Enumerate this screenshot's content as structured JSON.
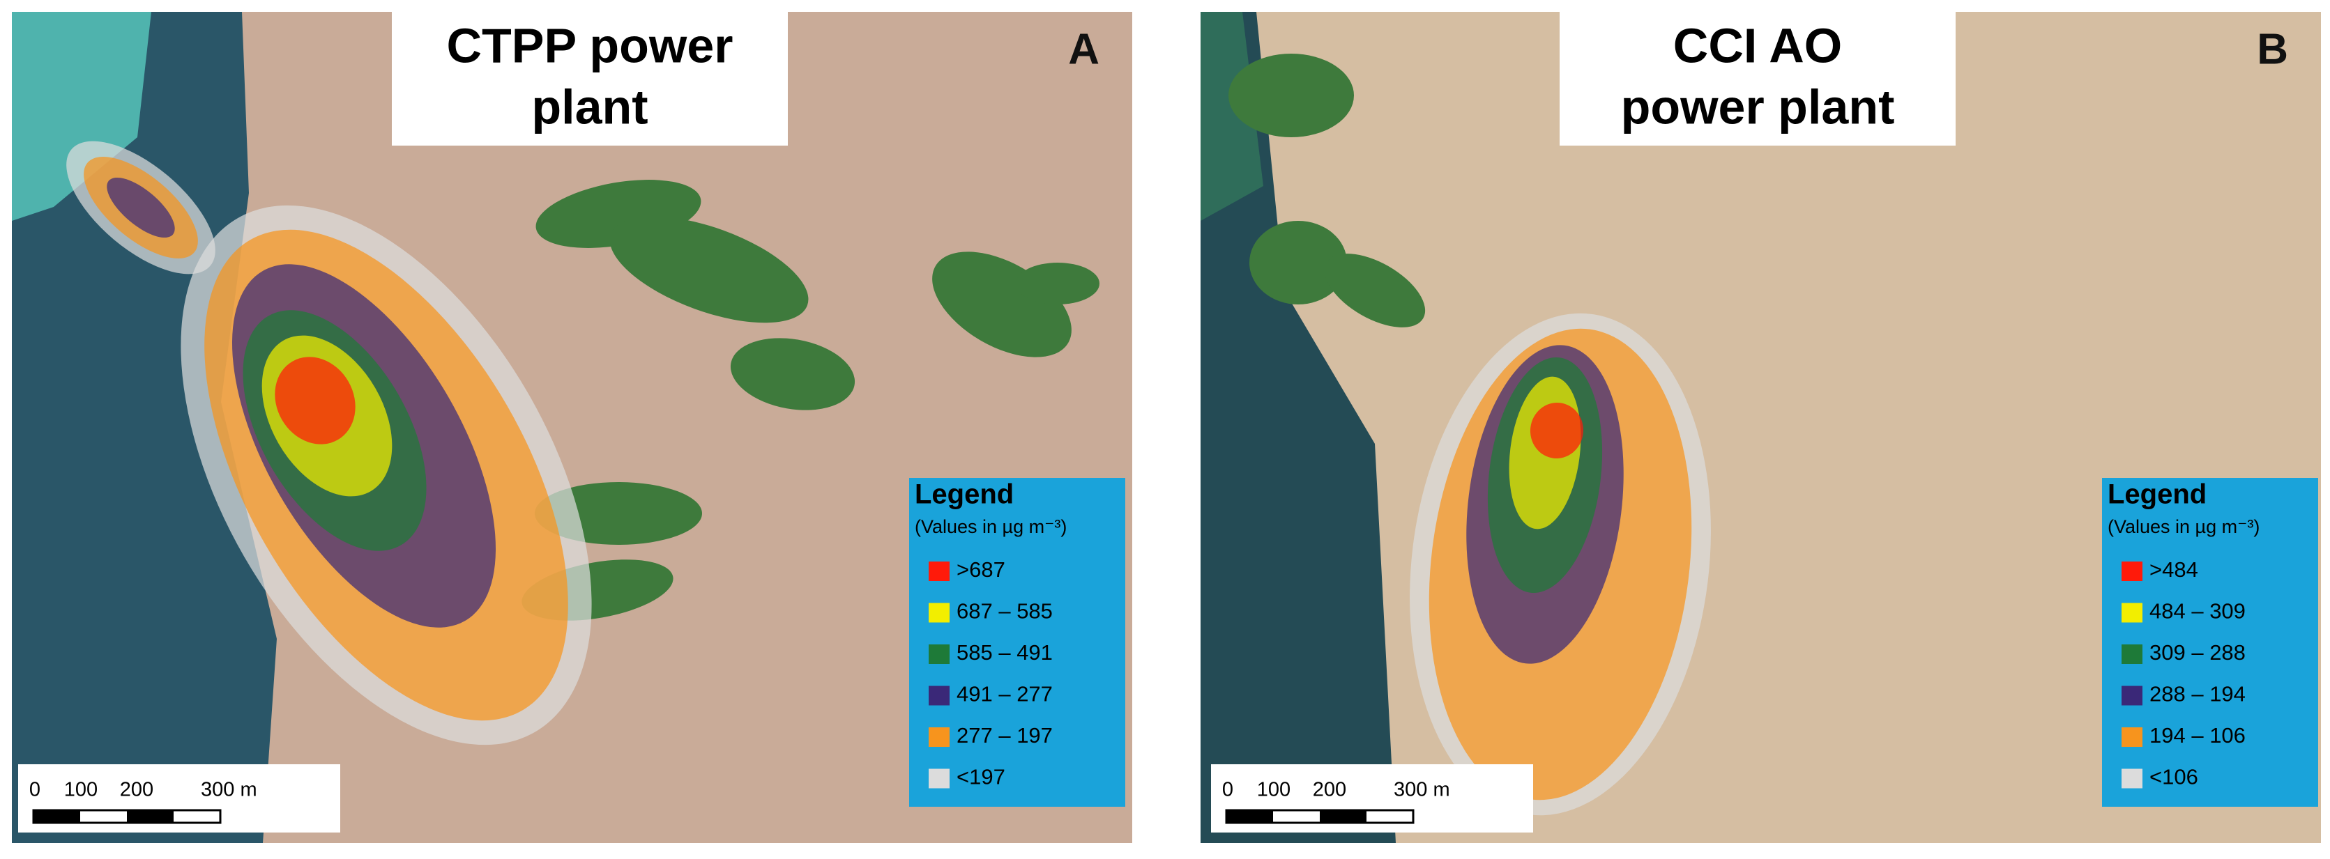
{
  "panels": [
    {
      "letter": "A",
      "title_lines": [
        "CTPP power",
        "plant"
      ],
      "legend": {
        "title": "Legend",
        "subtitle": "(Values in µg m⁻³)",
        "items": [
          {
            "label": ">687",
            "color": "#ff1a0a"
          },
          {
            "label": "687 – 585",
            "color": "#f2ee00"
          },
          {
            "label": "585 – 491",
            "color": "#1e7a38"
          },
          {
            "label": "491 – 277",
            "color": "#3a2878"
          },
          {
            "label": "277 – 197",
            "color": "#f7941d"
          },
          {
            "label": "<197",
            "color": "#dcdcdc"
          }
        ]
      },
      "scale_bar": {
        "labels": [
          "0",
          "100",
          "200",
          "300 m"
        ]
      }
    },
    {
      "letter": "B",
      "title_lines": [
        "CCI AO",
        "power plant"
      ],
      "legend": {
        "title": "Legend",
        "subtitle": "(Values in µg m⁻³)",
        "items": [
          {
            "label": ">484",
            "color": "#ff1a0a"
          },
          {
            "label": "484 – 309",
            "color": "#f2ee00"
          },
          {
            "label": "309 – 288",
            "color": "#1e7a38"
          },
          {
            "label": "288 – 194",
            "color": "#3a2878"
          },
          {
            "label": "194 – 106",
            "color": "#f7941d"
          },
          {
            "label": "<106",
            "color": "#dcdcdc"
          }
        ]
      },
      "scale_bar": {
        "labels": [
          "0",
          "100",
          "200",
          "300 m"
        ]
      }
    }
  ]
}
